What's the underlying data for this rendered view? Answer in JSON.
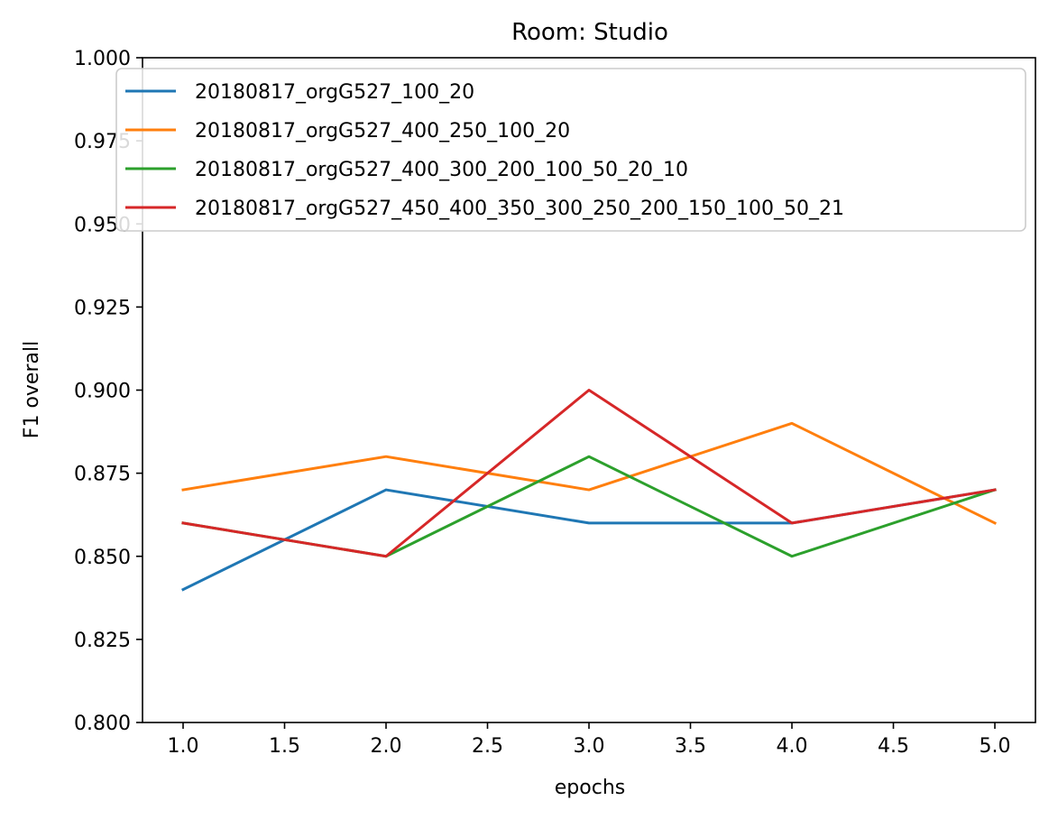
{
  "chart_data": {
    "type": "line",
    "title": "Room: Studio",
    "xlabel": "epochs",
    "ylabel": "F1 overall",
    "xlim": [
      0.8,
      5.2
    ],
    "ylim": [
      0.8,
      1.0
    ],
    "xticks": [
      "1.0",
      "1.5",
      "2.0",
      "2.5",
      "3.0",
      "3.5",
      "4.0",
      "4.5",
      "5.0"
    ],
    "yticks": [
      "0.800",
      "0.825",
      "0.850",
      "0.875",
      "0.900",
      "0.925",
      "0.950",
      "0.975",
      "1.000"
    ],
    "grid": false,
    "legend_position": "top-right",
    "x": [
      1,
      2,
      3,
      4,
      5
    ],
    "series": [
      {
        "name": "20180817_orgG527_100_20",
        "color": "#1f77b4",
        "values": [
          0.84,
          0.87,
          0.86,
          0.86,
          0.87
        ]
      },
      {
        "name": "20180817_orgG527_400_250_100_20",
        "color": "#ff7f0e",
        "values": [
          0.87,
          0.88,
          0.87,
          0.89,
          0.86
        ]
      },
      {
        "name": "20180817_orgG527_400_300_200_100_50_20_10",
        "color": "#2ca02c",
        "values": [
          0.86,
          0.85,
          0.88,
          0.85,
          0.87
        ]
      },
      {
        "name": "20180817_orgG527_450_400_350_300_250_200_150_100_50_21",
        "color": "#d62728",
        "values": [
          0.86,
          0.85,
          0.9,
          0.86,
          0.87
        ]
      }
    ]
  }
}
